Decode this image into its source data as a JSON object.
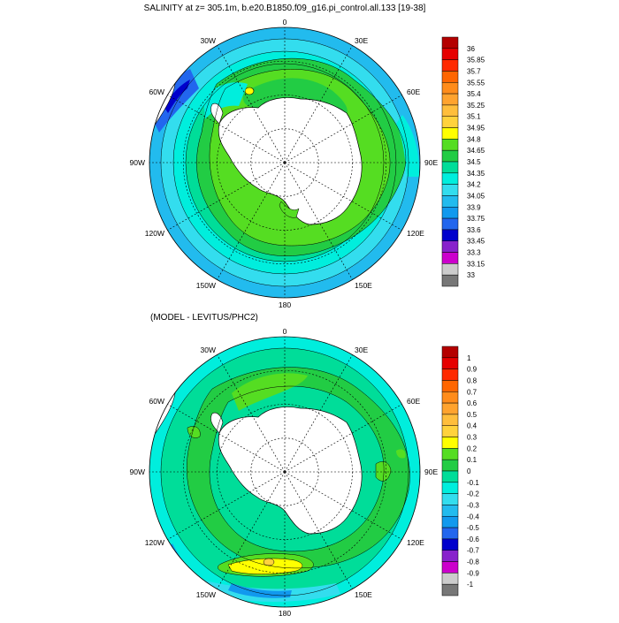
{
  "panels": [
    {
      "title": "SALINITY at z= 305.1m, b.e20.B1850.f09_g16.pi_control.all.133 [19-38]",
      "lon_labels": {
        "0": "0",
        "30E": "30E",
        "60E": "60E",
        "90E": "90E",
        "120E": "120E",
        "150E": "150E",
        "180": "180",
        "150W": "150W",
        "120W": "120W",
        "90W": "90W",
        "60W": "60W",
        "30W": "30W"
      },
      "colorbar": {
        "labels": [
          "36",
          "35.85",
          "35.7",
          "35.55",
          "35.4",
          "35.25",
          "35.1",
          "34.95",
          "34.8",
          "34.65",
          "34.5",
          "34.35",
          "34.2",
          "34.05",
          "33.9",
          "33.75",
          "33.6",
          "33.45",
          "33.3",
          "33.15",
          "33"
        ],
        "colors": [
          "#b40000",
          "#e60000",
          "#ff2a00",
          "#ff6600",
          "#ff8c1a",
          "#ffa32e",
          "#ffbe3c",
          "#ffd23c",
          "#ffff00",
          "#55dd22",
          "#22cc44",
          "#00dd99",
          "#00eedd",
          "#33ddee",
          "#22bbee",
          "#1199ee",
          "#2266ee",
          "#0000cc",
          "#8822cc",
          "#cc00cc",
          "#cccccc",
          "#777777"
        ],
        "field_levels": [
          "34.05",
          "34.2",
          "34.35",
          "34.5",
          "34.65",
          "34.8"
        ]
      }
    },
    {
      "title": "(MODEL - LEVITUS/PHC2)",
      "lon_labels": {
        "0": "0",
        "30E": "30E",
        "60E": "60E",
        "90E": "90E",
        "120E": "120E",
        "150E": "150E",
        "180": "180",
        "150W": "150W",
        "120W": "120W",
        "90W": "90W",
        "60W": "60W",
        "30W": "30W"
      },
      "colorbar": {
        "labels": [
          "1",
          "0.9",
          "0.8",
          "0.7",
          "0.6",
          "0.5",
          "0.4",
          "0.3",
          "0.2",
          "0.1",
          "0",
          "-0.1",
          "-0.2",
          "-0.3",
          "-0.4",
          "-0.5",
          "-0.6",
          "-0.7",
          "-0.8",
          "-0.9",
          "-1"
        ],
        "colors": [
          "#b40000",
          "#e60000",
          "#ff2a00",
          "#ff6600",
          "#ff8c1a",
          "#ffa32e",
          "#ffbe3c",
          "#ffd23c",
          "#ffff00",
          "#55dd22",
          "#22cc44",
          "#00dd99",
          "#00eedd",
          "#33ddee",
          "#22bbee",
          "#1199ee",
          "#2266ee",
          "#0000cc",
          "#8822cc",
          "#cc00cc",
          "#cccccc",
          "#777777"
        ],
        "field_levels": [
          "-0.4",
          "-0.3",
          "-0.2",
          "-0.1",
          "0",
          "0.1",
          "0.2",
          "0.3"
        ]
      }
    }
  ]
}
